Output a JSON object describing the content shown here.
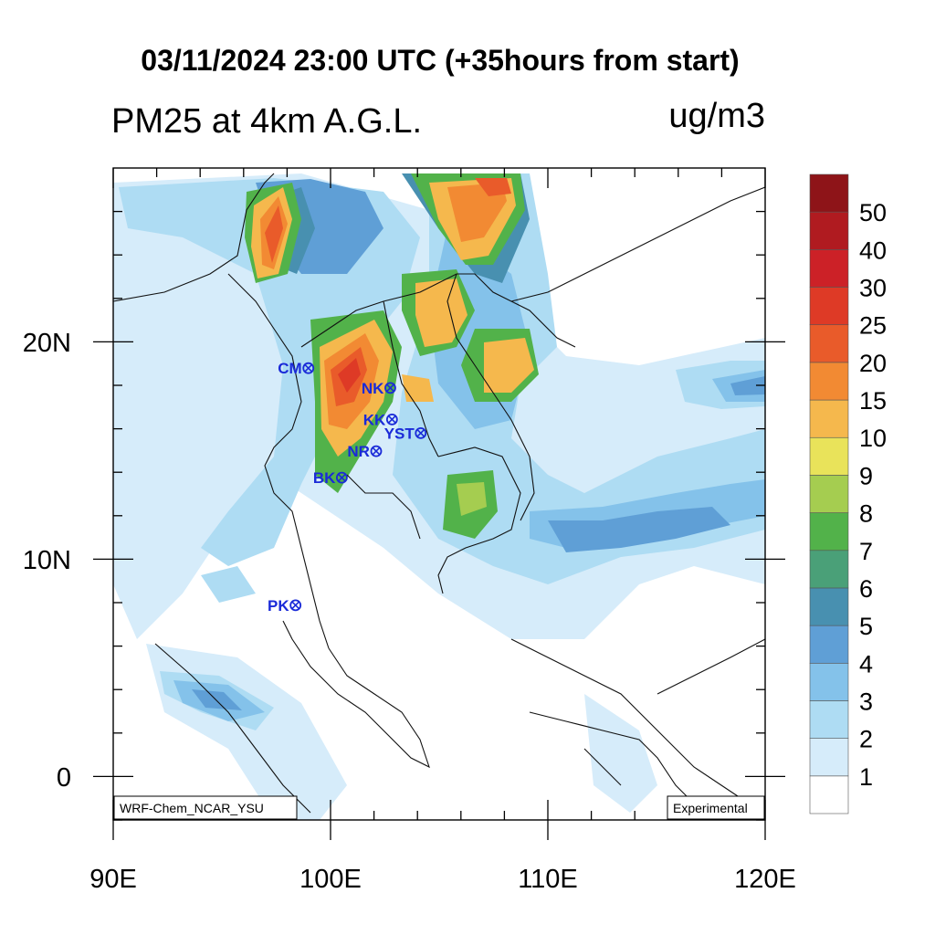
{
  "header": {
    "title": "03/11/2024 23:00 UTC (+35hours from start)",
    "variable": "PM25 at 4km A.G.L.",
    "units": "ug/m3"
  },
  "axes": {
    "lon_labels": [
      "90E",
      "100E",
      "110E",
      "120E"
    ],
    "lat_labels": [
      "20N",
      "10N",
      "0"
    ]
  },
  "stations": [
    {
      "code": "CM",
      "lon": 98.98,
      "lat": 18.79
    },
    {
      "code": "NK",
      "lon": 102.75,
      "lat": 17.88
    },
    {
      "code": "KK",
      "lon": 102.83,
      "lat": 16.43
    },
    {
      "code": "YST",
      "lon": 104.15,
      "lat": 15.8
    },
    {
      "code": "NR",
      "lon": 102.1,
      "lat": 14.97
    },
    {
      "code": "BK",
      "lon": 100.52,
      "lat": 13.75
    },
    {
      "code": "PK",
      "lon": 98.39,
      "lat": 7.88
    }
  ],
  "notes": {
    "model": "WRF-Chem_NCAR_YSU",
    "status": "Experimental"
  },
  "colorbar": {
    "labels": [
      "1",
      "2",
      "3",
      "4",
      "5",
      "6",
      "7",
      "8",
      "9",
      "10",
      "15",
      "20",
      "25",
      "30",
      "40",
      "50"
    ],
    "colors": [
      "#ffffff",
      "#d6ecfa",
      "#aedcf3",
      "#84c2ea",
      "#5f9fd6",
      "#4890b0",
      "#4aa078",
      "#52b24a",
      "#a5cd50",
      "#e9e35a",
      "#f5b84d",
      "#f28a33",
      "#e95b2a",
      "#de3a26",
      "#cc2127",
      "#b01b20",
      "#8e1418"
    ]
  }
}
